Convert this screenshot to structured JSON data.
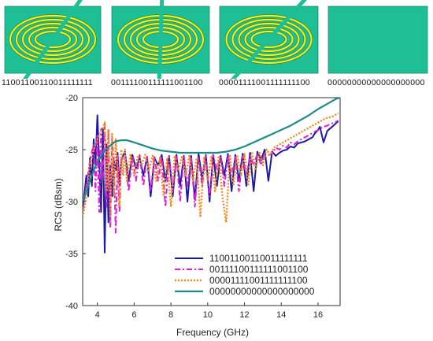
{
  "tiles": [
    {
      "code": "11001100110011111111",
      "rings": true,
      "gap": "diagonal-a"
    },
    {
      "code": "00111100111111001100",
      "rings": true,
      "gap": "vertical"
    },
    {
      "code": "00001111001111111100",
      "rings": true,
      "gap": "diagonal-b"
    },
    {
      "code": "00000000000000000000",
      "rings": false
    }
  ],
  "tile_colors": {
    "background": "#1ebf95",
    "ring": "#f2f21a",
    "ring_edge": "#2a7a3a",
    "border": "#1a8a6a"
  },
  "chart_data": {
    "type": "line",
    "xlabel": "Frequency (GHz)",
    "ylabel": "RCS (dBsm)",
    "xlim": [
      3.2,
      17.2
    ],
    "ylim": [
      -40,
      -20
    ],
    "xticks": [
      "4",
      "6",
      "8",
      "10",
      "12",
      "14",
      "16"
    ],
    "yticks": [
      "-20",
      "-25",
      "-30",
      "-35",
      "-40"
    ],
    "legend_position": "bottom-right",
    "series": [
      {
        "name": "11001100110011111111",
        "color": "#1a1aa8",
        "style": "solid",
        "x": [
          3.2,
          3.4,
          3.5,
          3.6,
          3.7,
          3.8,
          3.9,
          4.0,
          4.1,
          4.2,
          4.3,
          4.4,
          4.5,
          4.6,
          4.7,
          4.8,
          4.9,
          5.0,
          5.1,
          5.2,
          5.3,
          5.5,
          5.7,
          5.9,
          6.1,
          6.3,
          6.5,
          6.7,
          6.9,
          7.1,
          7.3,
          7.5,
          7.7,
          7.9,
          8.1,
          8.3,
          8.5,
          8.7,
          8.9,
          9.1,
          9.3,
          9.5,
          9.7,
          9.9,
          10.1,
          10.3,
          10.5,
          10.7,
          10.9,
          11.1,
          11.3,
          11.5,
          11.7,
          11.9,
          12.1,
          12.3,
          12.5,
          12.7,
          12.9,
          13.1,
          13.3,
          13.5,
          13.7,
          13.9,
          14.1,
          14.3,
          14.5,
          14.7,
          14.9,
          15.1,
          15.3,
          15.5,
          15.7,
          15.8,
          15.9,
          16.0,
          16.1,
          16.3,
          16.5,
          16.7,
          16.9,
          17.0,
          17.1
        ],
        "y": [
          -30.8,
          -27.5,
          -29.5,
          -25.8,
          -28.5,
          -24.0,
          -26.5,
          -21.7,
          -26.0,
          -31.0,
          -23.0,
          -34.9,
          -24.5,
          -32.0,
          -26.5,
          -29.5,
          -26.0,
          -27.0,
          -25.3,
          -28.5,
          -26.0,
          -25.2,
          -28.0,
          -25.5,
          -26.8,
          -25.8,
          -27.5,
          -25.7,
          -29.5,
          -25.8,
          -26.5,
          -25.5,
          -28.0,
          -25.6,
          -29.5,
          -25.5,
          -28.5,
          -25.6,
          -30.0,
          -25.6,
          -29.8,
          -25.4,
          -27.8,
          -25.5,
          -30.0,
          -25.5,
          -28.5,
          -25.6,
          -27.5,
          -25.4,
          -29.0,
          -25.5,
          -28.0,
          -25.4,
          -28.5,
          -25.3,
          -29.0,
          -25.2,
          -26.0,
          -25.0,
          -28.0,
          -25.2,
          -25.6,
          -25.3,
          -25.1,
          -25.0,
          -24.7,
          -24.8,
          -24.4,
          -24.3,
          -24.2,
          -24.0,
          -23.8,
          -23.5,
          -23.3,
          -23.1,
          -22.8,
          -24.3,
          -23.2,
          -22.9,
          -22.6,
          -22.4,
          -22.3
        ]
      },
      {
        "name": "00111100111111001100",
        "color": "#e21dd3",
        "style": "dashdot",
        "x": [
          3.2,
          3.4,
          3.6,
          3.8,
          3.9,
          4.0,
          4.1,
          4.2,
          4.3,
          4.4,
          4.5,
          4.6,
          4.7,
          4.8,
          4.9,
          5.0,
          5.1,
          5.2,
          5.3,
          5.5,
          5.7,
          5.9,
          6.1,
          6.3,
          6.5,
          6.7,
          6.9,
          7.1,
          7.3,
          7.5,
          7.7,
          7.9,
          8.1,
          8.3,
          8.5,
          8.7,
          8.9,
          9.1,
          9.3,
          9.5,
          9.7,
          9.9,
          10.1,
          10.3,
          10.5,
          10.7,
          10.9,
          11.1,
          11.3,
          11.5,
          11.7,
          11.9,
          12.1,
          12.3,
          12.5,
          12.7,
          12.9,
          13.1,
          13.3,
          13.5,
          13.7,
          13.9,
          14.1,
          14.3,
          14.5,
          14.7,
          14.9,
          15.1,
          15.3,
          15.5,
          15.7,
          15.9,
          16.1,
          16.3,
          16.5,
          16.7,
          16.9,
          17.1
        ],
        "y": [
          -31.0,
          -28.5,
          -26.0,
          -24.5,
          -29.0,
          -23.5,
          -31.0,
          -23.0,
          -28.0,
          -22.6,
          -30.5,
          -23.2,
          -32.5,
          -24.0,
          -26.5,
          -33.0,
          -25.5,
          -31.0,
          -26.0,
          -25.5,
          -29.0,
          -25.6,
          -28.0,
          -25.5,
          -28.5,
          -25.6,
          -29.0,
          -25.7,
          -28.0,
          -25.6,
          -30.5,
          -25.6,
          -29.0,
          -25.7,
          -30.0,
          -25.6,
          -28.5,
          -25.7,
          -30.5,
          -25.8,
          -28.5,
          -25.6,
          -29.5,
          -25.5,
          -27.0,
          -25.6,
          -28.5,
          -25.6,
          -27.5,
          -25.7,
          -29.0,
          -25.6,
          -27.5,
          -25.6,
          -26.5,
          -25.4,
          -26.5,
          -25.3,
          -25.5,
          -25.4,
          -24.8,
          -25.0,
          -24.6,
          -24.8,
          -24.3,
          -24.5,
          -24.2,
          -24.0,
          -23.8,
          -23.6,
          -23.4,
          -23.2,
          -23.0,
          -22.8,
          -22.7,
          -22.5,
          -22.4,
          -22.2
        ]
      },
      {
        "name": "00001111001111111100",
        "color": "#f28a1e",
        "style": "dotted",
        "x": [
          3.2,
          3.4,
          3.6,
          3.8,
          4.0,
          4.2,
          4.4,
          4.5,
          4.6,
          4.7,
          4.8,
          4.9,
          5.0,
          5.1,
          5.2,
          5.3,
          5.4,
          5.5,
          5.6,
          5.8,
          6.0,
          6.2,
          6.4,
          6.6,
          6.8,
          7.0,
          7.2,
          7.4,
          7.6,
          7.8,
          8.0,
          8.2,
          8.4,
          8.6,
          8.8,
          9.0,
          9.2,
          9.4,
          9.6,
          9.8,
          10.0,
          10.2,
          10.4,
          10.6,
          10.8,
          11.0,
          11.2,
          11.4,
          11.6,
          11.8,
          12.0,
          12.2,
          12.4,
          12.6,
          12.8,
          13.0,
          13.2,
          13.4,
          13.6,
          13.8,
          14.0,
          14.2,
          14.4,
          14.6,
          14.8,
          15.0,
          15.2,
          15.4,
          15.6,
          15.8,
          16.0,
          16.2,
          16.4,
          16.6,
          16.8,
          17.0,
          17.1
        ],
        "y": [
          -31.5,
          -29.5,
          -26.5,
          -25.0,
          -24.0,
          -23.3,
          -22.4,
          -29.0,
          -23.0,
          -31.5,
          -23.5,
          -29.5,
          -24.0,
          -27.0,
          -30.5,
          -25.0,
          -27.5,
          -25.0,
          -28.0,
          -25.5,
          -27.5,
          -25.6,
          -26.5,
          -25.5,
          -27.0,
          -25.6,
          -28.0,
          -25.8,
          -29.5,
          -25.8,
          -30.5,
          -25.7,
          -27.0,
          -25.6,
          -27.5,
          -25.6,
          -28.0,
          -25.8,
          -31.5,
          -25.8,
          -28.0,
          -25.7,
          -29.0,
          -25.6,
          -29.5,
          -32.0,
          -25.6,
          -28.5,
          -25.5,
          -27.5,
          -25.4,
          -28.5,
          -25.2,
          -27.0,
          -25.2,
          -26.5,
          -25.0,
          -25.5,
          -24.8,
          -24.6,
          -24.4,
          -24.2,
          -24.0,
          -23.8,
          -23.6,
          -23.4,
          -23.2,
          -23.0,
          -22.8,
          -22.6,
          -22.4,
          -22.2,
          -22.0,
          -21.9,
          -21.8,
          -21.6,
          -21.5
        ]
      },
      {
        "name": "00000000000000000000",
        "color": "#1f8a8a",
        "style": "solid",
        "x": [
          3.2,
          3.5,
          3.8,
          4.1,
          4.4,
          4.7,
          5.0,
          5.3,
          5.6,
          6.0,
          6.5,
          7.0,
          7.5,
          8.0,
          8.5,
          9.0,
          9.5,
          10.0,
          10.5,
          11.0,
          11.5,
          12.0,
          12.5,
          13.0,
          13.5,
          14.0,
          14.5,
          15.0,
          15.5,
          16.0,
          16.5,
          17.0,
          17.2
        ],
        "y": [
          -30.0,
          -28.5,
          -27.0,
          -25.9,
          -25.1,
          -24.6,
          -24.2,
          -24.1,
          -24.1,
          -24.3,
          -24.6,
          -24.9,
          -25.1,
          -25.2,
          -25.3,
          -25.3,
          -25.3,
          -25.3,
          -25.3,
          -25.2,
          -25.0,
          -24.7,
          -24.3,
          -23.9,
          -23.5,
          -23.1,
          -22.7,
          -22.2,
          -21.7,
          -21.1,
          -20.6,
          -20.1,
          -20.0
        ]
      }
    ]
  }
}
